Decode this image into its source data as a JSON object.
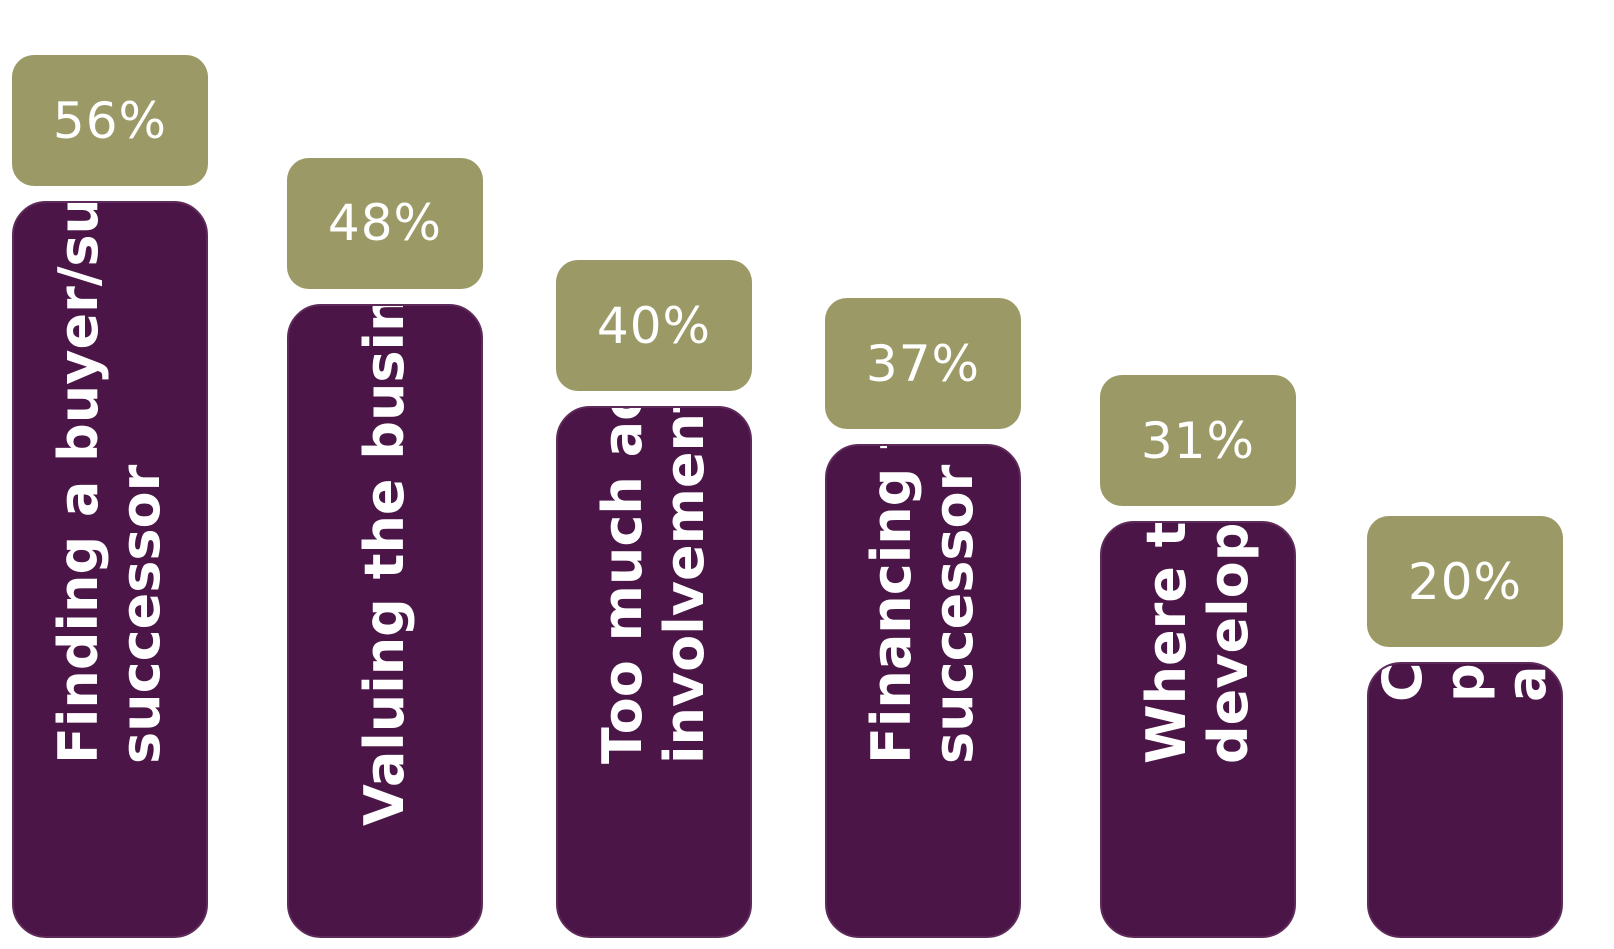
{
  "chart_data": {
    "type": "bar",
    "categories": [
      [
        "Finding a buyer/suitable",
        "successor"
      ],
      [
        "Valuing the business"
      ],
      [
        "Too much active",
        "involvement"
      ],
      [
        "Financing the",
        "successor"
      ],
      [
        "Where to start",
        "developing a plan"
      ],
      [
        "Cost effective",
        "professional",
        "advice"
      ]
    ],
    "values": [
      56,
      48,
      40,
      37,
      31,
      20
    ],
    "value_labels": [
      "56%",
      "48%",
      "40%",
      "37%",
      "31%",
      "20%"
    ],
    "ylim": [
      0,
      60
    ],
    "grid": false,
    "legend": "none",
    "colors": {
      "bar": "#4b1647",
      "badge": "#9b9966",
      "text": "#ffffff"
    }
  }
}
